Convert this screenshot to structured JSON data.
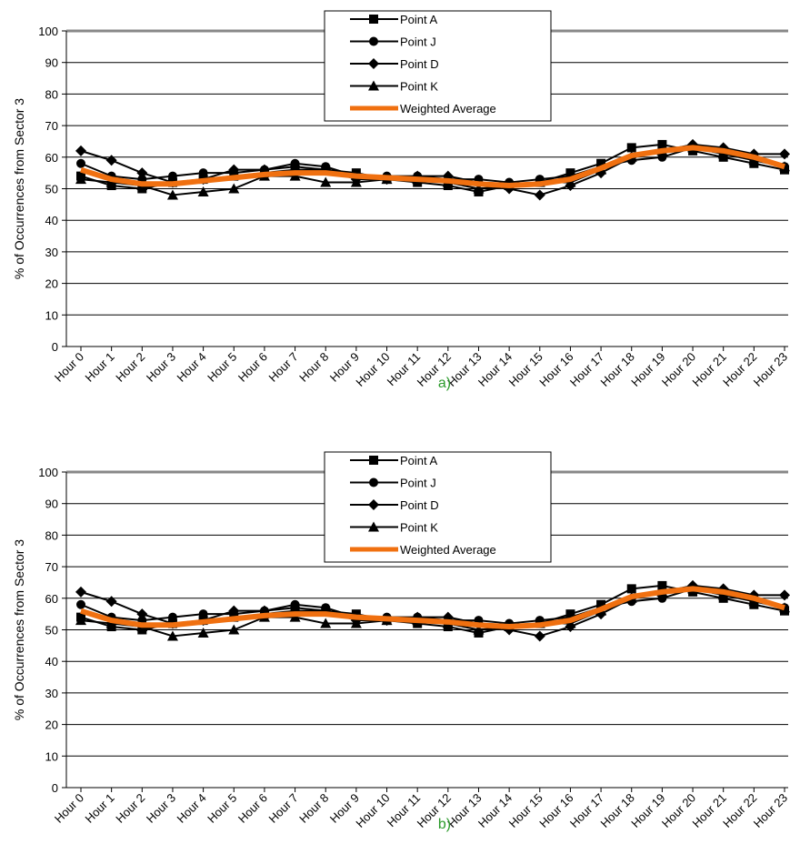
{
  "chart_data": [
    {
      "type": "line",
      "y_label": "% of Occurrences from Sector 3",
      "caption": "a)",
      "categories": [
        "Hour 0",
        "Hour 1",
        "Hour 2",
        "Hour 3",
        "Hour 4",
        "Hour 5",
        "Hour 6",
        "Hour 7",
        "Hour 8",
        "Hour 9",
        "Hour 10",
        "Hour 11",
        "Hour 12",
        "Hour 13",
        "Hour 14",
        "Hour 15",
        "Hour 16",
        "Hour 17",
        "Hour 18",
        "Hour 19",
        "Hour 20",
        "Hour 21",
        "Hour 22",
        "Hour 23"
      ],
      "series": [
        {
          "name": "Point A",
          "color": "#000000",
          "marker": "square",
          "values": [
            54,
            51,
            50,
            52,
            53,
            54,
            55,
            56,
            56,
            55,
            53,
            52,
            51,
            49,
            51,
            52,
            55,
            58,
            63,
            64,
            62,
            60,
            58,
            56
          ]
        },
        {
          "name": "Point J",
          "color": "#000000",
          "marker": "circle",
          "values": [
            58,
            54,
            53,
            54,
            55,
            55,
            56,
            58,
            57,
            54,
            54,
            54,
            53,
            53,
            52,
            53,
            54,
            57,
            59,
            60,
            63,
            62,
            60,
            57
          ]
        },
        {
          "name": "Point D",
          "color": "#000000",
          "marker": "diamond",
          "values": [
            62,
            59,
            55,
            52,
            53,
            56,
            56,
            57,
            56,
            53,
            53,
            54,
            54,
            52,
            50,
            48,
            51,
            55,
            60,
            62,
            64,
            63,
            61,
            61
          ]
        },
        {
          "name": "Point K",
          "color": "#000000",
          "marker": "triangle",
          "values": [
            53,
            52,
            51,
            48,
            49,
            50,
            54,
            54,
            52,
            52,
            53,
            53,
            52,
            50,
            51,
            52,
            52,
            56,
            60,
            62,
            63,
            61,
            59,
            57
          ]
        },
        {
          "name": "Weighted Average",
          "color": "#f07010",
          "marker": "none",
          "values": [
            56,
            53,
            51.5,
            51.5,
            52.5,
            53.5,
            54.5,
            55,
            55,
            54,
            53.5,
            53,
            52.5,
            51.5,
            51,
            51.5,
            53,
            56.5,
            60.5,
            62,
            63,
            62,
            60,
            57
          ]
        }
      ],
      "ylim": [
        0,
        100
      ],
      "yticks": [
        0,
        10,
        20,
        30,
        40,
        50,
        60,
        70,
        80,
        90,
        100
      ],
      "grid": true,
      "legend": "top"
    },
    {
      "type": "line",
      "y_label": "% of Occurrences from Sector 3",
      "caption": "b)",
      "categories": [
        "Hour 0",
        "Hour 1",
        "Hour 2",
        "Hour 3",
        "Hour 4",
        "Hour 5",
        "Hour 6",
        "Hour 7",
        "Hour 8",
        "Hour 9",
        "Hour 10",
        "Hour 11",
        "Hour 12",
        "Hour 13",
        "Hour 14",
        "Hour 15",
        "Hour 16",
        "Hour 17",
        "Hour 18",
        "Hour 19",
        "Hour 20",
        "Hour 21",
        "Hour 22",
        "Hour 23"
      ],
      "series": [
        {
          "name": "Point A",
          "color": "#000000",
          "marker": "square",
          "values": [
            54,
            51,
            50,
            52,
            53,
            54,
            55,
            56,
            56,
            55,
            53,
            52,
            51,
            49,
            51,
            52,
            55,
            58,
            63,
            64,
            62,
            60,
            58,
            56
          ]
        },
        {
          "name": "Point J",
          "color": "#000000",
          "marker": "circle",
          "values": [
            58,
            54,
            53,
            54,
            55,
            55,
            56,
            58,
            57,
            54,
            54,
            54,
            53,
            53,
            52,
            53,
            54,
            57,
            59,
            60,
            63,
            62,
            60,
            57
          ]
        },
        {
          "name": "Point D",
          "color": "#000000",
          "marker": "diamond",
          "values": [
            62,
            59,
            55,
            52,
            53,
            56,
            56,
            57,
            56,
            53,
            53,
            54,
            54,
            52,
            50,
            48,
            51,
            55,
            60,
            62,
            64,
            63,
            61,
            61
          ]
        },
        {
          "name": "Point K",
          "color": "#000000",
          "marker": "triangle",
          "values": [
            53,
            52,
            51,
            48,
            49,
            50,
            54,
            54,
            52,
            52,
            53,
            53,
            52,
            50,
            51,
            52,
            52,
            56,
            60,
            62,
            63,
            61,
            59,
            57
          ]
        },
        {
          "name": "Weighted Average",
          "color": "#f07010",
          "marker": "none",
          "values": [
            56,
            53,
            51.5,
            51.5,
            52.5,
            53.5,
            54.5,
            55,
            55,
            54,
            53.5,
            53,
            52.5,
            51.5,
            51,
            51.5,
            53,
            56.5,
            60.5,
            62,
            63,
            62,
            60,
            57
          ]
        }
      ],
      "ylim": [
        0,
        100
      ],
      "yticks": [
        0,
        10,
        20,
        30,
        40,
        50,
        60,
        70,
        80,
        90,
        100
      ],
      "grid": true,
      "legend": "top"
    }
  ]
}
